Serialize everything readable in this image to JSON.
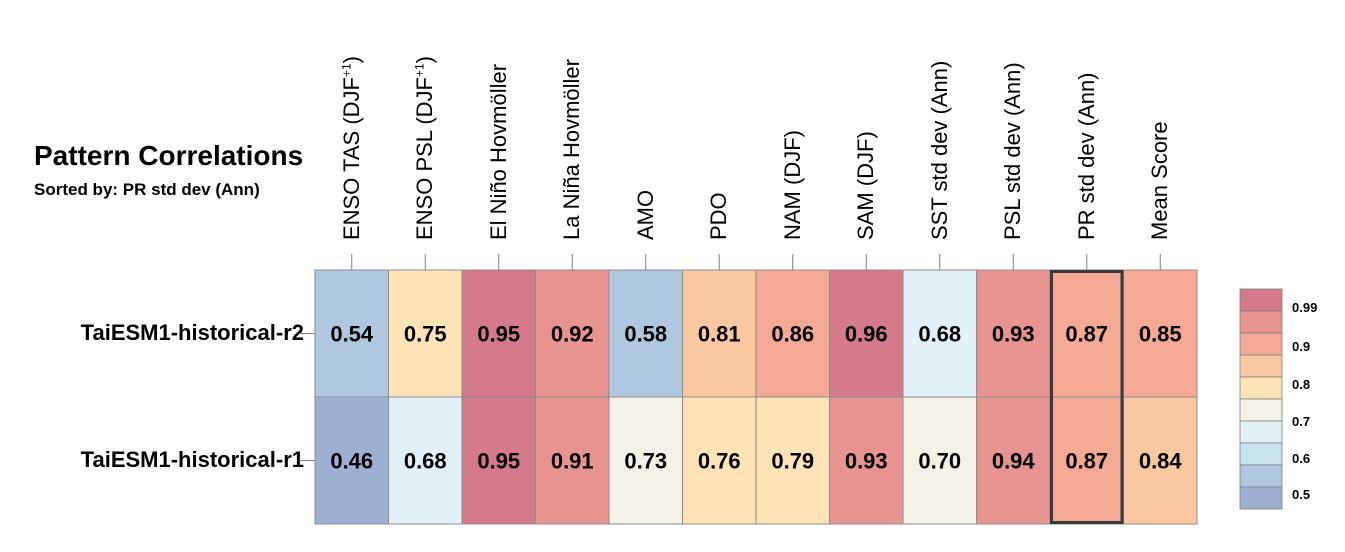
{
  "chart_data": {
    "type": "heatmap",
    "title": "Pattern Correlations",
    "subtitle": "Sorted by: PR std dev (Ann)",
    "columns": [
      {
        "label": "ENSO TAS (DJF",
        "sup": "+1",
        "tail": ")"
      },
      {
        "label": "ENSO PSL (DJF",
        "sup": "+1",
        "tail": ")"
      },
      {
        "label": "El Niño Hovmöller"
      },
      {
        "label": "La Niña Hovmöller"
      },
      {
        "label": "AMO"
      },
      {
        "label": "PDO"
      },
      {
        "label": "NAM (DJF)"
      },
      {
        "label": "SAM (DJF)"
      },
      {
        "label": "SST std dev (Ann)"
      },
      {
        "label": "PSL std dev (Ann)"
      },
      {
        "label": "PR std dev (Ann)"
      },
      {
        "label": "Mean Score"
      }
    ],
    "rows": [
      {
        "label": "TaiESM1-historical-r2",
        "values": [
          0.54,
          0.75,
          0.95,
          0.92,
          0.58,
          0.81,
          0.86,
          0.96,
          0.68,
          0.93,
          0.87,
          0.85
        ]
      },
      {
        "label": "TaiESM1-historical-r1",
        "values": [
          0.46,
          0.68,
          0.95,
          0.91,
          0.73,
          0.76,
          0.79,
          0.93,
          0.7,
          0.94,
          0.87,
          0.84
        ]
      }
    ],
    "highlighted_column": 10,
    "legend": {
      "placement": "right",
      "labels": [
        "0.99",
        "0.9",
        "0.8",
        "0.7",
        "0.6",
        "0.5"
      ],
      "bins": [
        {
          "min": 0.95,
          "max": 1.0,
          "color": "#d57a8b"
        },
        {
          "min": 0.9,
          "max": 0.95,
          "color": "#e79390"
        },
        {
          "min": 0.85,
          "max": 0.9,
          "color": "#f4a995"
        },
        {
          "min": 0.8,
          "max": 0.85,
          "color": "#f9c8a1"
        },
        {
          "min": 0.75,
          "max": 0.8,
          "color": "#fde3b6"
        },
        {
          "min": 0.7,
          "max": 0.75,
          "color": "#f4f2e6"
        },
        {
          "min": 0.65,
          "max": 0.7,
          "color": "#e2f1f7"
        },
        {
          "min": 0.6,
          "max": 0.65,
          "color": "#c9e2ef"
        },
        {
          "min": 0.5,
          "max": 0.6,
          "color": "#afc8df"
        },
        {
          "min": 0.0,
          "max": 0.5,
          "color": "#9eb0d1"
        }
      ]
    }
  }
}
